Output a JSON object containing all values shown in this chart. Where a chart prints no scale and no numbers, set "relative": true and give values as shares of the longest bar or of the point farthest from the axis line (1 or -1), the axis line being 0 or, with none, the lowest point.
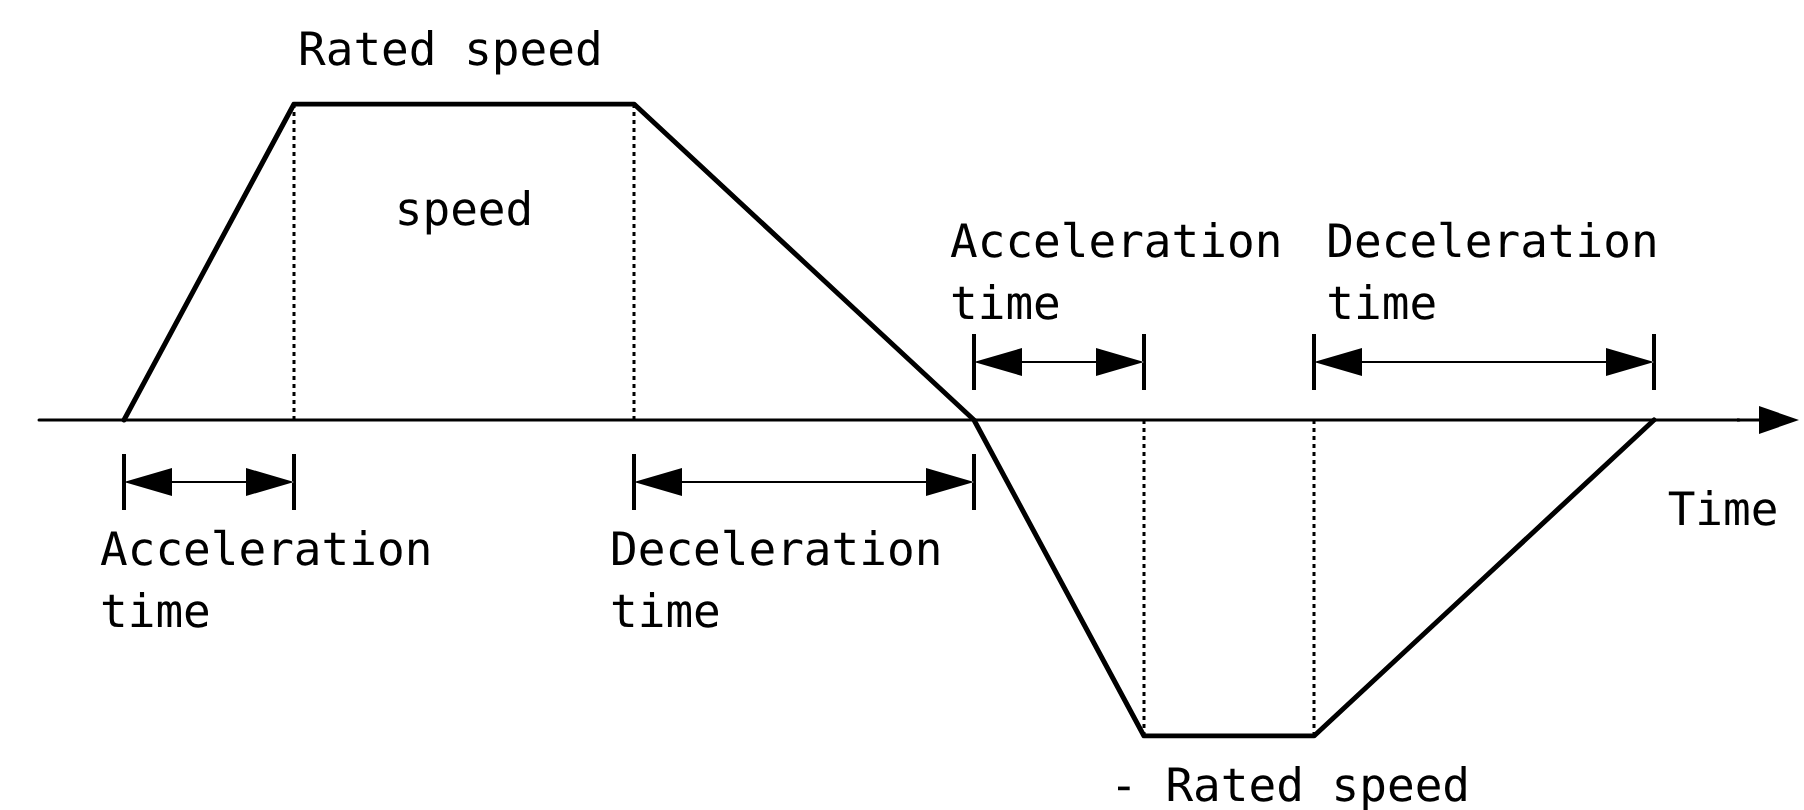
{
  "chart_data": {
    "type": "line",
    "xlabel": "Time",
    "categories": [
      null,
      null,
      null,
      null,
      null,
      null,
      null,
      null,
      null,
      null
    ],
    "series": [
      {
        "color": "#000000",
        "values": [
          0,
          1,
          1,
          1,
          0.5,
          0,
          -1,
          -1,
          -0.5,
          0
        ]
      }
    ],
    "relative": true,
    "marker": "none",
    "annotations": [
      {
        "text": "Rated speed",
        "y": 1
      },
      "speed",
      "Acceleration time",
      "Deceleration time",
      "Acceleration time",
      "Deceleration time",
      {
        "text": "- Rated speed",
        "y": -1
      }
    ]
  }
}
